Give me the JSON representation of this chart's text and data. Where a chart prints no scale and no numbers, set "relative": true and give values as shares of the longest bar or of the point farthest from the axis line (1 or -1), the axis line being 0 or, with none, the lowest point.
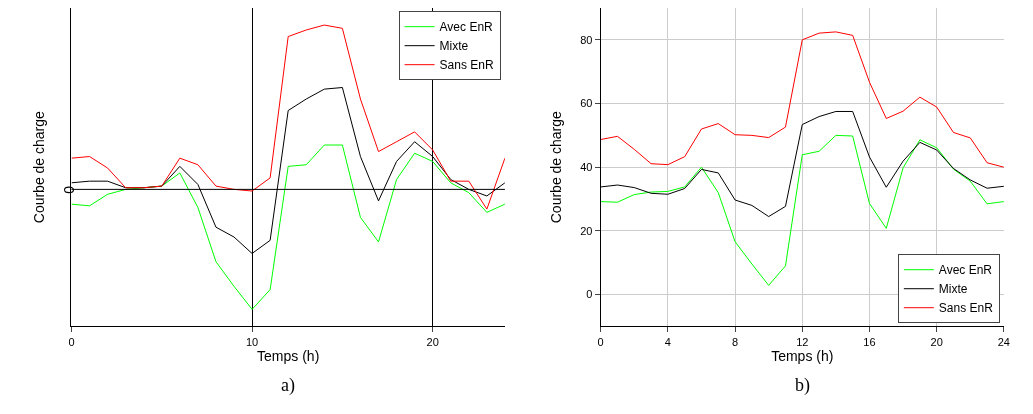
{
  "chart_data": [
    {
      "type": "line",
      "relative": true,
      "xlabel": "Temps (h)",
      "ylabel": "Courbe de charge",
      "xlim": [
        0,
        24
      ],
      "xticks": [
        0,
        10,
        20
      ],
      "grid": "x",
      "legend": "top right",
      "annotations": [
        "a)"
      ],
      "ref_lines": [
        {
          "axis": "y",
          "value": 0,
          "label": "0"
        }
      ],
      "x": [
        0,
        1,
        2,
        3,
        4,
        5,
        6,
        7,
        8,
        9,
        10,
        11,
        12,
        13,
        14,
        15,
        16,
        17,
        18,
        19,
        20,
        21,
        22,
        23,
        24
      ],
      "series": [
        {
          "name": "Avec EnR",
          "color": "#00ff00",
          "values": [
            -0.09,
            -0.1,
            -0.03,
            0,
            0.01,
            0.02,
            0.1,
            -0.11,
            -0.44,
            -0.59,
            -0.73,
            -0.61,
            0.14,
            0.15,
            0.27,
            0.27,
            -0.17,
            -0.32,
            0.06,
            0.22,
            0.17,
            0.04,
            -0.02,
            -0.14,
            -0.09
          ]
        },
        {
          "name": "Mixte",
          "color": "#000000",
          "values": [
            0.04,
            0.05,
            0.05,
            0.01,
            0.01,
            0.02,
            0.14,
            0.03,
            -0.23,
            -0.29,
            -0.39,
            -0.31,
            0.48,
            0.55,
            0.61,
            0.62,
            0.2,
            -0.07,
            0.17,
            0.29,
            0.2,
            0.06,
            0,
            -0.04,
            0.04
          ]
        },
        {
          "name": "Sans EnR",
          "color": "#ff0000",
          "values": [
            0.19,
            0.2,
            0.13,
            0.01,
            0.01,
            0.02,
            0.19,
            0.15,
            0.02,
            0,
            -0.01,
            0.07,
            0.93,
            0.97,
            1,
            0.98,
            0.55,
            0.23,
            0.29,
            0.35,
            0.24,
            0.05,
            0.05,
            -0.12,
            0.19
          ]
        }
      ]
    },
    {
      "type": "line",
      "xlabel": "Temps (h)",
      "ylabel": "Courbe de charge",
      "xlim": [
        0,
        24
      ],
      "xticks": [
        0,
        4,
        8,
        12,
        16,
        20,
        24
      ],
      "ylim": [
        -10,
        90
      ],
      "yticks": [
        0,
        20,
        40,
        60,
        80
      ],
      "grid": true,
      "legend": "bottom right",
      "annotations": [
        "b)"
      ],
      "x": [
        0,
        1,
        2,
        3,
        4,
        5,
        6,
        7,
        8,
        9,
        10,
        11,
        12,
        13,
        14,
        15,
        16,
        17,
        18,
        19,
        20,
        21,
        22,
        23,
        24
      ],
      "series": [
        {
          "name": "Avec EnR",
          "color": "#00ff00",
          "values": [
            29.2,
            29,
            31.4,
            32.2,
            32.4,
            33.8,
            40,
            32,
            16.6,
            9.6,
            2.9,
            9,
            43.9,
            45,
            50,
            49.8,
            28.6,
            20.8,
            39.8,
            48.6,
            46.1,
            39.4,
            35.6,
            28.5,
            29.2
          ]
        },
        {
          "name": "Mixte",
          "color": "#000000",
          "values": [
            33.8,
            34.4,
            33.6,
            31.8,
            31.5,
            33.3,
            39.3,
            38.2,
            29.7,
            28,
            24.5,
            27.7,
            53.4,
            55.9,
            57.5,
            57.5,
            43.2,
            33.7,
            41.9,
            47.8,
            45.4,
            39.6,
            36,
            33.4,
            34
          ]
        },
        {
          "name": "Sans EnR",
          "color": "#ff0000",
          "values": [
            48.7,
            49.7,
            45.6,
            41.1,
            40.8,
            43.3,
            52,
            53.7,
            50.2,
            50,
            49.3,
            52.6,
            80,
            82.1,
            82.5,
            81.4,
            66.7,
            55.3,
            57.6,
            62,
            58.9,
            50.9,
            49.2,
            41.4,
            40
          ]
        }
      ]
    }
  ]
}
